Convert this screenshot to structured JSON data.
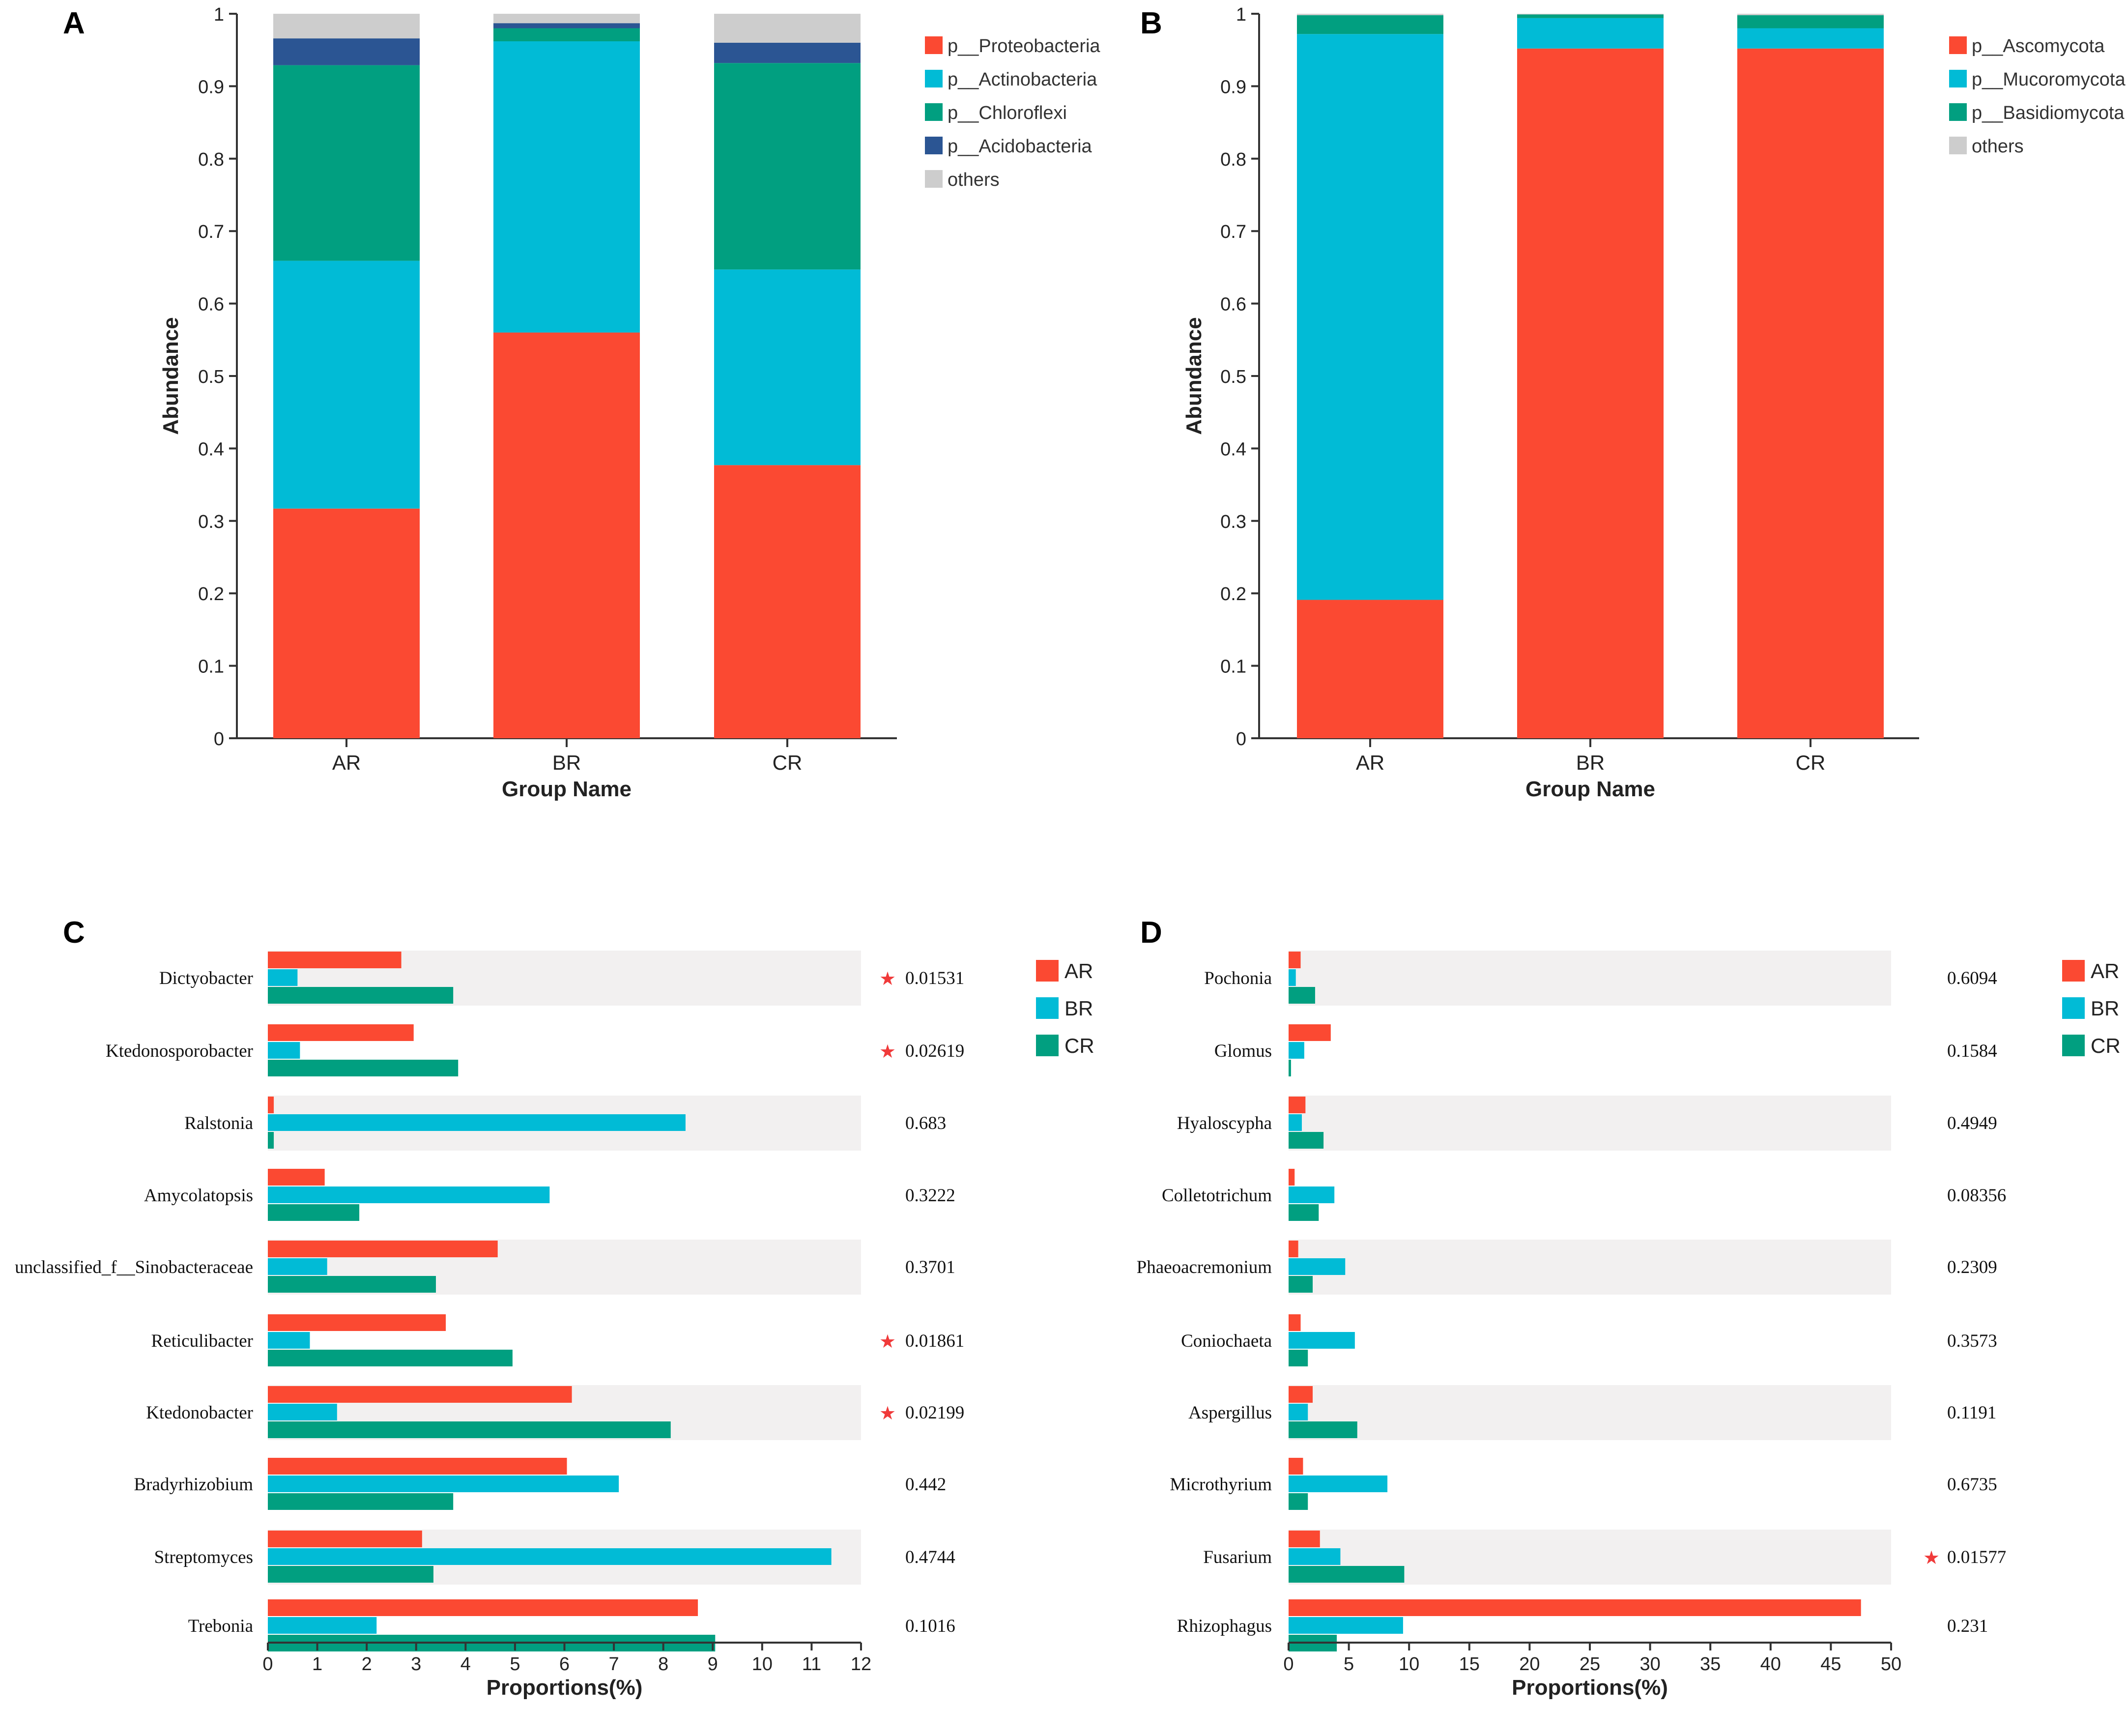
{
  "colors": {
    "red": "#fb4932",
    "cyan": "#01bbd6",
    "green": "#019f80",
    "navy": "#2b5593",
    "gray": "#cdcdcd",
    "band": "#f2f0f0",
    "star": "#f03a3a",
    "axis": "#333333"
  },
  "chart_data": [
    {
      "panel": "A",
      "type": "bar",
      "stacked": true,
      "xlabel": "Group Name",
      "ylabel": "Abundance",
      "ylim": [
        0,
        1
      ],
      "yticks": [
        "0",
        "0.1",
        "0.2",
        "0.3",
        "0.4",
        "0.5",
        "0.6",
        "0.7",
        "0.8",
        "0.9",
        "1"
      ],
      "categories": [
        "AR",
        "BR",
        "CR"
      ],
      "series": [
        {
          "name": "p__Proteobacteria",
          "color": "red",
          "values": [
            0.317,
            0.56,
            0.377
          ]
        },
        {
          "name": "p__Actinobacteria",
          "color": "cyan",
          "values": [
            0.342,
            0.402,
            0.27
          ]
        },
        {
          "name": "p__Chloroflexi",
          "color": "green",
          "values": [
            0.27,
            0.018,
            0.285
          ]
        },
        {
          "name": "p__Acidobacteria",
          "color": "navy",
          "values": [
            0.037,
            0.007,
            0.028
          ]
        },
        {
          "name": "others",
          "color": "gray",
          "values": [
            0.034,
            0.013,
            0.04
          ]
        }
      ],
      "legend_position": "right"
    },
    {
      "panel": "B",
      "type": "bar",
      "stacked": true,
      "xlabel": "Group Name",
      "ylabel": "Abundance",
      "ylim": [
        0,
        1
      ],
      "yticks": [
        "0",
        "0.1",
        "0.2",
        "0.3",
        "0.4",
        "0.5",
        "0.6",
        "0.7",
        "0.8",
        "0.9",
        "1"
      ],
      "categories": [
        "AR",
        "BR",
        "CR"
      ],
      "series": [
        {
          "name": "p__Ascomycota",
          "color": "red",
          "values": [
            0.191,
            0.952,
            0.952
          ]
        },
        {
          "name": "p__Mucoromycota",
          "color": "cyan",
          "values": [
            0.781,
            0.042,
            0.028
          ]
        },
        {
          "name": "p__Basidiomycota",
          "color": "green",
          "values": [
            0.026,
            0.005,
            0.018
          ]
        },
        {
          "name": "others",
          "color": "gray",
          "values": [
            0.002,
            0.001,
            0.002
          ]
        }
      ],
      "legend_position": "right"
    },
    {
      "panel": "C",
      "type": "bar",
      "orientation": "horizontal",
      "xlabel": "Proportions(%)",
      "xlim": [
        0,
        12
      ],
      "xticks": [
        "0",
        "1",
        "2",
        "3",
        "4",
        "5",
        "6",
        "7",
        "8",
        "9",
        "10",
        "11",
        "12"
      ],
      "categories": [
        "Dictyobacter",
        "Ktedonosporobacter",
        "Ralstonia",
        "Amycolatopsis",
        "unclassified_f__Sinobacteraceae",
        "Reticulibacter",
        "Ktedonobacter",
        "Bradyrhizobium",
        "Streptomyces",
        "Trebonia"
      ],
      "series": [
        {
          "name": "AR",
          "color": "red",
          "values": [
            2.7,
            2.95,
            0.12,
            1.15,
            4.65,
            3.6,
            6.15,
            6.05,
            3.12,
            8.7
          ]
        },
        {
          "name": "BR",
          "color": "cyan",
          "values": [
            0.6,
            0.65,
            8.45,
            5.7,
            1.2,
            0.85,
            1.4,
            7.1,
            11.4,
            2.2
          ]
        },
        {
          "name": "CR",
          "color": "green",
          "values": [
            3.75,
            3.85,
            0.12,
            1.85,
            3.4,
            4.95,
            8.15,
            3.75,
            3.35,
            9.05
          ]
        }
      ],
      "p_values": [
        "0.01531",
        "0.02619",
        "0.683",
        "0.3222",
        "0.3701",
        "0.01861",
        "0.02199",
        "0.442",
        "0.4744",
        "0.1016"
      ],
      "significant": [
        true,
        true,
        false,
        false,
        false,
        true,
        true,
        false,
        false,
        false
      ],
      "legend_position": "right"
    },
    {
      "panel": "D",
      "type": "bar",
      "orientation": "horizontal",
      "xlabel": "Proportions(%)",
      "xlim": [
        0,
        50
      ],
      "xticks": [
        "0",
        "5",
        "10",
        "15",
        "20",
        "25",
        "30",
        "35",
        "40",
        "45",
        "50"
      ],
      "categories": [
        "Pochonia",
        "Glomus",
        "Hyaloscypha",
        "Colletotrichum",
        "Phaeoacremonium",
        "Coniochaeta",
        "Aspergillus",
        "Microthyrium",
        "Fusarium",
        "Rhizophagus"
      ],
      "series": [
        {
          "name": "AR",
          "color": "red",
          "values": [
            1.0,
            3.5,
            1.4,
            0.5,
            0.8,
            1.0,
            2.0,
            1.2,
            2.6,
            47.5
          ]
        },
        {
          "name": "BR",
          "color": "cyan",
          "values": [
            0.6,
            1.3,
            1.1,
            3.8,
            4.7,
            5.5,
            1.6,
            8.2,
            4.3,
            9.5
          ]
        },
        {
          "name": "CR",
          "color": "green",
          "values": [
            2.2,
            0.2,
            2.9,
            2.5,
            2.0,
            1.6,
            5.7,
            1.6,
            9.6,
            4.0
          ]
        }
      ],
      "p_values": [
        "0.6094",
        "0.1584",
        "0.4949",
        "0.08356",
        "0.2309",
        "0.3573",
        "0.1191",
        "0.6735",
        "0.01577",
        "0.231"
      ],
      "significant": [
        false,
        false,
        false,
        false,
        false,
        false,
        false,
        false,
        true,
        false
      ],
      "legend_position": "right"
    }
  ]
}
